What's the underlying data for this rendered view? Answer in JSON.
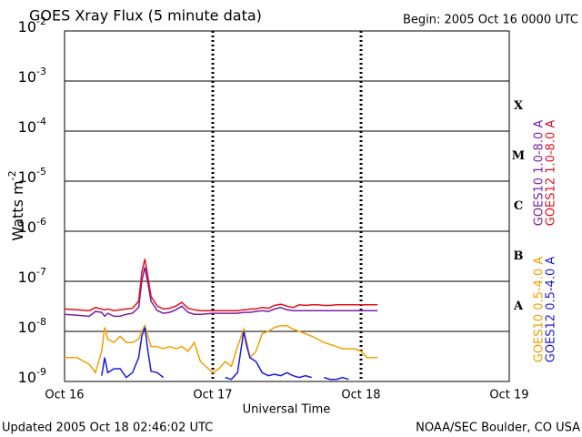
{
  "chart_data": {
    "type": "line",
    "title": "GOES Xray Flux (5 minute data)",
    "begin_label": "Begin:  2005 Oct 16 0000 UTC",
    "x_label": "Universal Time",
    "y_label": "Watts m",
    "y_label_superscript": "-2",
    "updated_label": "Updated 2005 Oct 18 02:46:02 UTC",
    "source_label": "NOAA/SEC Boulder, CO USA",
    "flare_classes": [
      "A",
      "B",
      "C",
      "M",
      "X"
    ],
    "log_y": true,
    "grid": true,
    "xlim": [
      0,
      72
    ],
    "xticks": [
      {
        "value": 0,
        "label": "Oct 16"
      },
      {
        "value": 24,
        "label": "Oct 17"
      },
      {
        "value": 48,
        "label": "Oct 18"
      },
      {
        "value": 72,
        "label": "Oct 19"
      }
    ],
    "ylim": [
      1e-09,
      0.01
    ],
    "yticks": [
      {
        "value": 0.01,
        "label": "10",
        "superscript": "-2"
      },
      {
        "value": 0.001,
        "label": "10",
        "superscript": "-3"
      },
      {
        "value": 0.0001,
        "label": "10",
        "superscript": "-4"
      },
      {
        "value": 1e-05,
        "label": "10",
        "superscript": "-5"
      },
      {
        "value": 1e-06,
        "label": "10",
        "superscript": "-6"
      },
      {
        "value": 1e-07,
        "label": "10",
        "superscript": "-7"
      },
      {
        "value": 1e-08,
        "label": "10",
        "superscript": "-8"
      },
      {
        "value": 1e-09,
        "label": "10",
        "superscript": "-9"
      }
    ],
    "x": [
      0,
      2,
      4,
      5,
      6,
      6.5,
      7,
      8,
      9,
      10,
      11,
      12,
      12.5,
      13,
      13.5,
      14,
      15,
      16,
      17,
      18,
      19,
      20,
      21,
      22,
      24,
      25,
      26,
      27,
      28,
      29,
      29.5,
      30,
      31,
      32,
      33,
      34,
      35,
      36,
      37,
      38,
      39,
      40,
      41,
      42,
      43,
      44,
      45,
      46,
      47,
      48,
      49,
      50,
      50.7
    ],
    "series": [
      {
        "name": "GOES10 1.0-8.0 A",
        "color": "#7a1fa2",
        "values": [
          2.2e-08,
          2.1e-08,
          2e-08,
          2.5e-08,
          2.4e-08,
          2e-08,
          2.3e-08,
          2e-08,
          2e-08,
          2.2e-08,
          2.3e-08,
          3e-08,
          1e-07,
          1.9e-07,
          9e-08,
          4e-08,
          2.6e-08,
          2.3e-08,
          2.4e-08,
          2.7e-08,
          3.2e-08,
          2.4e-08,
          2.2e-08,
          2.2e-08,
          2.3e-08,
          2.3e-08,
          2.3e-08,
          2.3e-08,
          2.3e-08,
          2.4e-08,
          2.4e-08,
          2.4e-08,
          2.5e-08,
          2.6e-08,
          2.5e-08,
          2.8e-08,
          3e-08,
          2.7e-08,
          2.6e-08,
          2.6e-08,
          2.6e-08,
          2.6e-08,
          2.6e-08,
          2.6e-08,
          2.6e-08,
          2.6e-08,
          2.6e-08,
          2.6e-08,
          2.6e-08,
          2.6e-08,
          2.6e-08,
          2.6e-08,
          2.6e-08
        ]
      },
      {
        "name": "GOES12 1.0-8.0 A",
        "color": "#e0101e",
        "values": [
          2.8e-08,
          2.7e-08,
          2.6e-08,
          3e-08,
          2.8e-08,
          2.7e-08,
          2.8e-08,
          2.6e-08,
          2.7e-08,
          2.8e-08,
          2.9e-08,
          4e-08,
          1.5e-07,
          2.8e-07,
          1.2e-07,
          5e-08,
          3.2e-08,
          2.8e-08,
          2.9e-08,
          3.2e-08,
          3.8e-08,
          2.9e-08,
          2.7e-08,
          2.6e-08,
          2.6e-08,
          2.6e-08,
          2.6e-08,
          2.6e-08,
          2.6e-08,
          2.7e-08,
          2.7e-08,
          2.8e-08,
          2.8e-08,
          3e-08,
          2.9e-08,
          3.3e-08,
          3.5e-08,
          3.2e-08,
          3e-08,
          3.4e-08,
          3.3e-08,
          3.4e-08,
          3.4e-08,
          3.3e-08,
          3.3e-08,
          3.4e-08,
          3.4e-08,
          3.4e-08,
          3.4e-08,
          3.4e-08,
          3.4e-08,
          3.4e-08,
          3.4e-08
        ]
      },
      {
        "name": "GOES10 0.5-4.0 A",
        "color": "#f0a000",
        "values": [
          3e-09,
          3e-09,
          2.2e-09,
          1.5e-09,
          4e-09,
          1.2e-08,
          7e-09,
          6e-09,
          8e-09,
          6e-09,
          6e-09,
          7e-09,
          1e-08,
          1.3e-08,
          8e-09,
          5e-09,
          5e-09,
          4.5e-09,
          5e-09,
          4.5e-09,
          5e-09,
          4e-09,
          6e-09,
          2.5e-09,
          1.5e-09,
          1.8e-09,
          2.5e-09,
          2e-09,
          5e-09,
          1.1e-08,
          6e-09,
          3e-09,
          4e-09,
          9e-09,
          1e-08,
          1.2e-08,
          1.3e-08,
          1.3e-08,
          1.1e-08,
          1e-08,
          9e-09,
          8e-09,
          7e-09,
          6e-09,
          5.5e-09,
          5e-09,
          4.5e-09,
          4.5e-09,
          4.5e-09,
          4e-09,
          3e-09,
          3e-09,
          3e-09
        ]
      },
      {
        "name": "GOES12 0.5-4.0 A",
        "color": "#1a1ae0",
        "values": [
          null,
          null,
          null,
          null,
          1.3e-09,
          3e-09,
          1.5e-09,
          1.8e-09,
          1.8e-09,
          1.2e-09,
          1.5e-09,
          3e-09,
          8e-09,
          1.2e-08,
          4e-09,
          1.6e-09,
          1.5e-09,
          1.2e-09,
          null,
          null,
          null,
          null,
          null,
          null,
          null,
          null,
          1.2e-09,
          1.1e-09,
          1.5e-09,
          1e-08,
          5e-09,
          3e-09,
          2.5e-09,
          1.5e-09,
          1.3e-09,
          1.4e-09,
          1.3e-09,
          1.5e-09,
          1.3e-09,
          1.2e-09,
          1.3e-09,
          1.2e-09,
          null,
          1.2e-09,
          1.1e-09,
          1.1e-09,
          1.2e-09,
          1.1e-09,
          null,
          null,
          null,
          null,
          null
        ]
      }
    ]
  }
}
